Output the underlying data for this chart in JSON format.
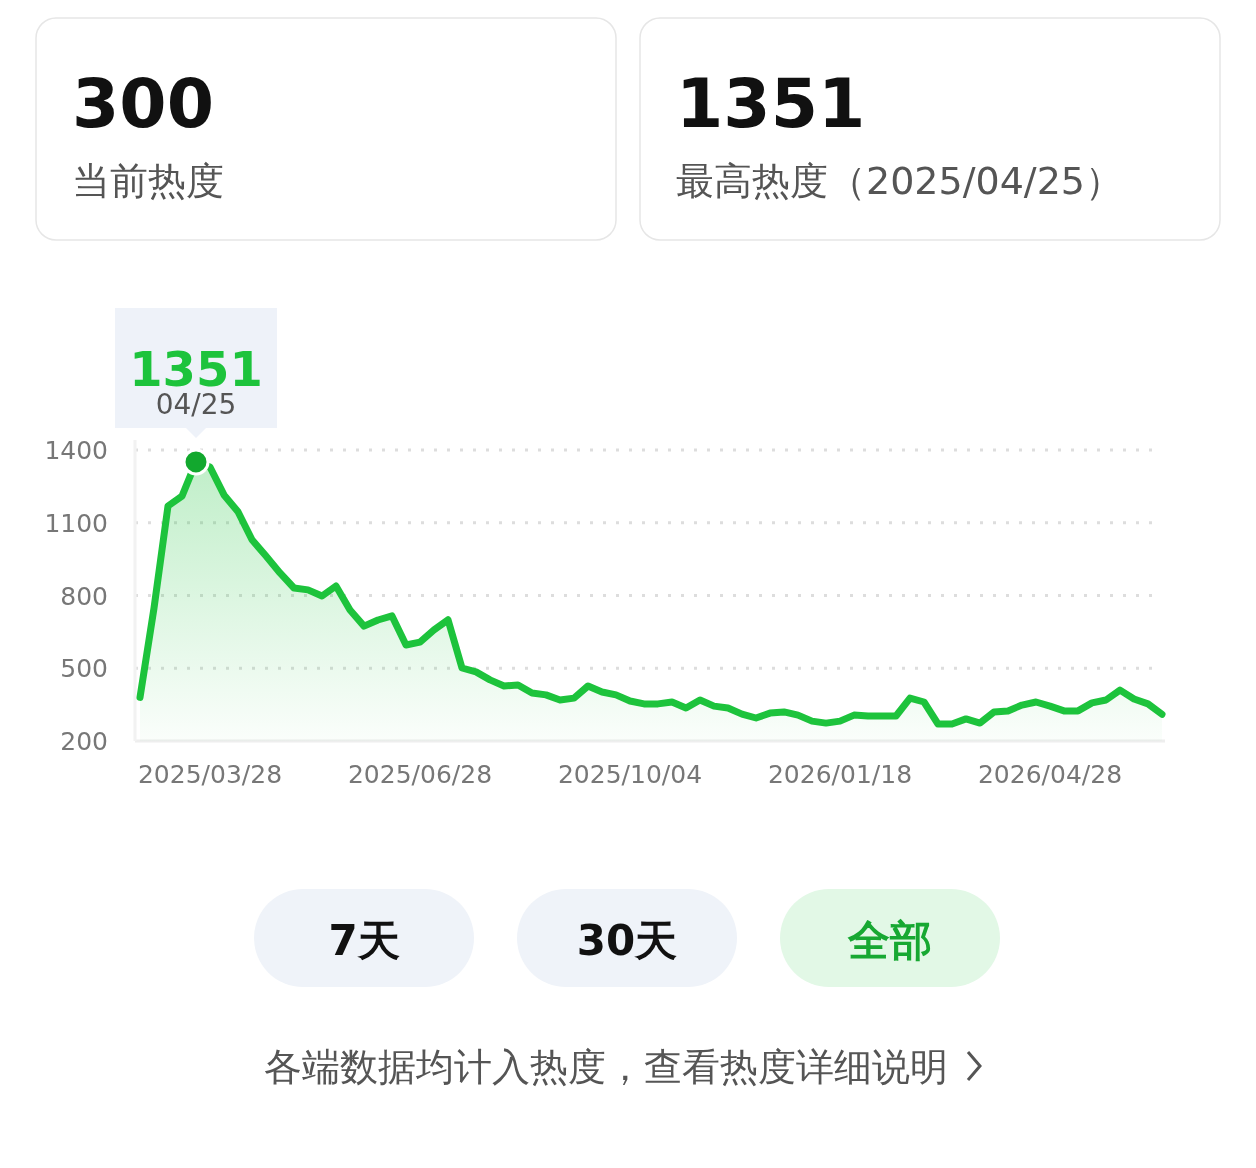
{
  "chart_data": [
    {
      "type": "other",
      "title": "300",
      "subtitle": "当前热度"
    },
    {
      "type": "other",
      "title": "1351",
      "subtitle": "最高热度（2025/04/25）"
    },
    {
      "type": "area",
      "categories": [
        null,
        null,
        null,
        null,
        null,
        "2025/03/28",
        null,
        null,
        null,
        null,
        null,
        null,
        null,
        null,
        null,
        null,
        null,
        null,
        null,
        null,
        "2025/06/28",
        null,
        null,
        null,
        null,
        null,
        null,
        null,
        null,
        null,
        null,
        null,
        null,
        null,
        null,
        "2025/10/04",
        null,
        null,
        null,
        null,
        null,
        null,
        null,
        null,
        null,
        null,
        null,
        null,
        null,
        null,
        "2026/01/18",
        null,
        null,
        null,
        null,
        null,
        null,
        null,
        null,
        null,
        null,
        null,
        null,
        null,
        null,
        "2026/04/28",
        null,
        null,
        null,
        null,
        null,
        null,
        null,
        null
      ],
      "series": [
        {
          "color": "#1dc33c",
          "values": [
            380,
            748,
            1169,
            1210,
            1351,
            1330,
            1215,
            1145,
            1030,
            963,
            893,
            831,
            823,
            798,
            839,
            740,
            674,
            699,
            716,
            596,
            608,
            658,
            700,
            501,
            485,
            452,
            427,
            431,
            398,
            390,
            369,
            377,
            427,
            402,
            390,
            365,
            353,
            353,
            361,
            336,
            369,
            344,
            336,
            311,
            295,
            315,
            320,
            307,
            282,
            274,
            282,
            307,
            303,
            303,
            303,
            377,
            361,
            270,
            270,
            291,
            274,
            320,
            324,
            348,
            361,
            344,
            324,
            324,
            357,
            369,
            410,
            373,
            353,
            310
          ]
        }
      ],
      "ylim": [
        200,
        1400
      ],
      "yticks": [
        200,
        500,
        800,
        1100,
        1400
      ],
      "grid": "y",
      "annotations": [
        {
          "text": "1351",
          "y": 1351
        },
        {
          "text": "04/25",
          "y": 1351
        }
      ]
    },
    {
      "type": "other",
      "annotations": [
        "7天",
        "30天",
        "全部",
        "各端数据均计入热度，查看热度详细说明"
      ]
    }
  ]
}
